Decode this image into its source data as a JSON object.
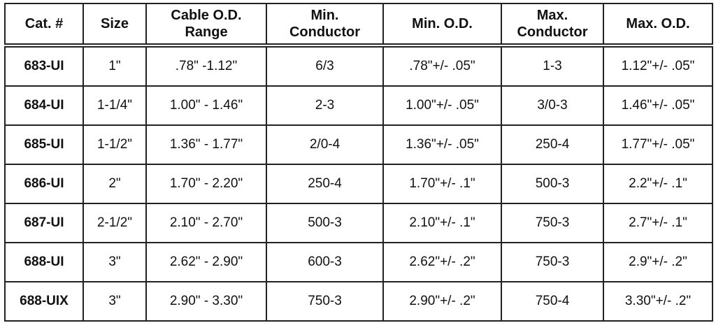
{
  "table": {
    "header": [
      [
        "Cat. #"
      ],
      [
        "Size"
      ],
      [
        "Cable O.D.",
        "Range"
      ],
      [
        "Min.",
        "Conductor"
      ],
      [
        "Min. O.D."
      ],
      [
        "Max.",
        "Conductor"
      ],
      [
        "Max. O.D."
      ]
    ],
    "rows": [
      [
        "683-UI",
        "1\"",
        ".78\" -1.12\"",
        "6/3",
        ".78\"+/- .05\"",
        "1-3",
        "1.12\"+/- .05\""
      ],
      [
        "684-UI",
        "1-1/4\"",
        "1.00\" - 1.46\"",
        "2-3",
        "1.00\"+/- .05\"",
        "3/0-3",
        "1.46\"+/- .05\""
      ],
      [
        "685-UI",
        "1-1/2\"",
        "1.36\" - 1.77\"",
        "2/0-4",
        "1.36\"+/- .05\"",
        "250-4",
        "1.77\"+/- .05\""
      ],
      [
        "686-UI",
        "2\"",
        "1.70\" - 2.20\"",
        "250-4",
        "1.70\"+/- .1\"",
        "500-3",
        "2.2\"+/- .1\""
      ],
      [
        "687-UI",
        "2-1/2\"",
        "2.10\" - 2.70\"",
        "500-3",
        "2.10\"+/- .1\"",
        "750-3",
        "2.7\"+/- .1\""
      ],
      [
        "688-UI",
        "3\"",
        "2.62\" - 2.90\"",
        "600-3",
        "2.62\"+/- .2\"",
        "750-3",
        "2.9\"+/- .2\""
      ],
      [
        "688-UIX",
        "3\"",
        "2.90\" - 3.30\"",
        "750-3",
        "2.90\"+/- .2\"",
        "750-4",
        "3.30\"+/- .2\""
      ]
    ]
  }
}
